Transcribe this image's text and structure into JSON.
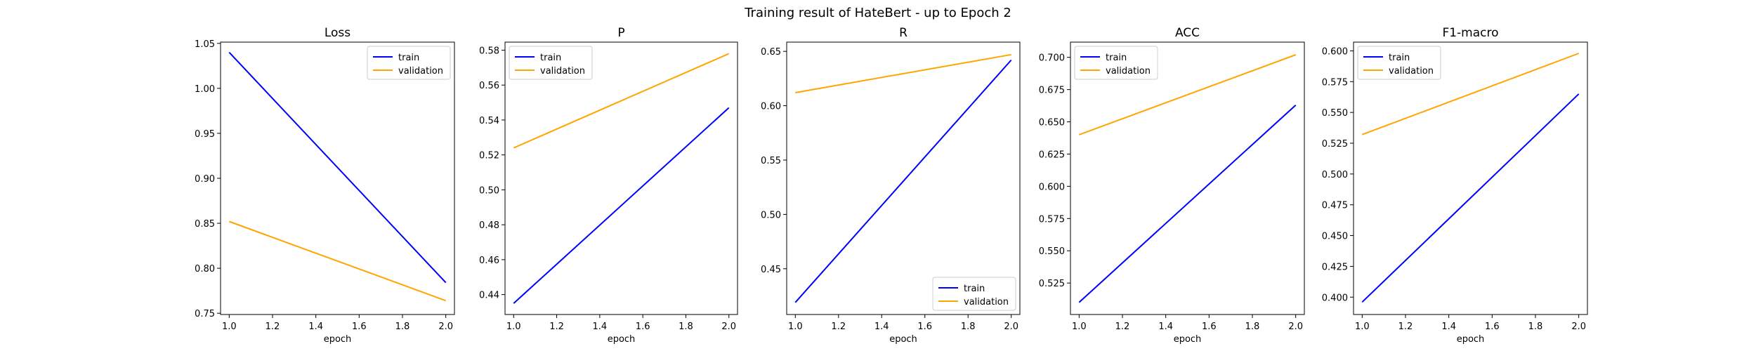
{
  "figure": {
    "suptitle": "Training result of HateBert - up to Epoch 2"
  },
  "chart_data": [
    {
      "type": "line",
      "title": "Loss",
      "xlabel": "epoch",
      "ylabel": "",
      "xlim": [
        0.96,
        2.04
      ],
      "ylim": [
        0.7486,
        1.0514
      ],
      "xticks": [
        "1.0",
        "1.2",
        "1.4",
        "1.6",
        "1.8",
        "2.0"
      ],
      "yticks": [
        "0.75",
        "0.80",
        "0.85",
        "0.90",
        "0.95",
        "1.00",
        "1.05"
      ],
      "legend": "top-right",
      "grid": false,
      "series": [
        {
          "name": "train",
          "color": "#0000ff",
          "x": [
            1.0,
            2.0
          ],
          "y": [
            1.04,
            0.784
          ]
        },
        {
          "name": "validation",
          "color": "#ffa500",
          "x": [
            1.0,
            2.0
          ],
          "y": [
            0.852,
            0.764
          ]
        }
      ]
    },
    {
      "type": "line",
      "title": "P",
      "xlabel": "epoch",
      "ylabel": "",
      "xlim": [
        0.96,
        2.04
      ],
      "ylim": [
        0.4286,
        0.5846
      ],
      "xticks": [
        "1.0",
        "1.2",
        "1.4",
        "1.6",
        "1.8",
        "2.0"
      ],
      "yticks": [
        "0.44",
        "0.46",
        "0.48",
        "0.50",
        "0.52",
        "0.54",
        "0.56",
        "0.58"
      ],
      "legend": "top-left",
      "grid": false,
      "series": [
        {
          "name": "train",
          "color": "#0000ff",
          "x": [
            1.0,
            2.0
          ],
          "y": [
            0.435,
            0.547
          ]
        },
        {
          "name": "validation",
          "color": "#ffa500",
          "x": [
            1.0,
            2.0
          ],
          "y": [
            0.524,
            0.578
          ]
        }
      ]
    },
    {
      "type": "line",
      "title": "R",
      "xlabel": "epoch",
      "ylabel": "",
      "xlim": [
        0.96,
        2.04
      ],
      "ylim": [
        0.4079,
        0.6585
      ],
      "xticks": [
        "1.0",
        "1.2",
        "1.4",
        "1.6",
        "1.8",
        "2.0"
      ],
      "yticks": [
        "0.45",
        "0.50",
        "0.55",
        "0.60",
        "0.65"
      ],
      "legend": "bottom-right",
      "grid": false,
      "series": [
        {
          "name": "train",
          "color": "#0000ff",
          "x": [
            1.0,
            2.0
          ],
          "y": [
            0.419,
            0.642
          ]
        },
        {
          "name": "validation",
          "color": "#ffa500",
          "x": [
            1.0,
            2.0
          ],
          "y": [
            0.612,
            0.647
          ]
        }
      ]
    },
    {
      "type": "line",
      "title": "ACC",
      "xlabel": "epoch",
      "ylabel": "",
      "xlim": [
        0.96,
        2.04
      ],
      "ylim": [
        0.5006,
        0.7118
      ],
      "xticks": [
        "1.0",
        "1.2",
        "1.4",
        "1.6",
        "1.8",
        "2.0"
      ],
      "yticks": [
        "0.525",
        "0.550",
        "0.575",
        "0.600",
        "0.625",
        "0.650",
        "0.675",
        "0.700"
      ],
      "legend": "top-left",
      "grid": false,
      "series": [
        {
          "name": "train",
          "color": "#0000ff",
          "x": [
            1.0,
            2.0
          ],
          "y": [
            0.51,
            0.663
          ]
        },
        {
          "name": "validation",
          "color": "#ffa500",
          "x": [
            1.0,
            2.0
          ],
          "y": [
            0.64,
            0.702
          ]
        }
      ]
    },
    {
      "type": "line",
      "title": "F1-macro",
      "xlabel": "epoch",
      "ylabel": "",
      "xlim": [
        0.96,
        2.04
      ],
      "ylim": [
        0.3859,
        0.6071
      ],
      "xticks": [
        "1.0",
        "1.2",
        "1.4",
        "1.6",
        "1.8",
        "2.0"
      ],
      "yticks": [
        "0.400",
        "0.425",
        "0.450",
        "0.475",
        "0.500",
        "0.525",
        "0.550",
        "0.575",
        "0.600"
      ],
      "legend": "top-left",
      "grid": false,
      "series": [
        {
          "name": "train",
          "color": "#0000ff",
          "x": [
            1.0,
            2.0
          ],
          "y": [
            0.396,
            0.565
          ]
        },
        {
          "name": "validation",
          "color": "#ffa500",
          "x": [
            1.0,
            2.0
          ],
          "y": [
            0.532,
            0.598
          ]
        }
      ]
    }
  ]
}
